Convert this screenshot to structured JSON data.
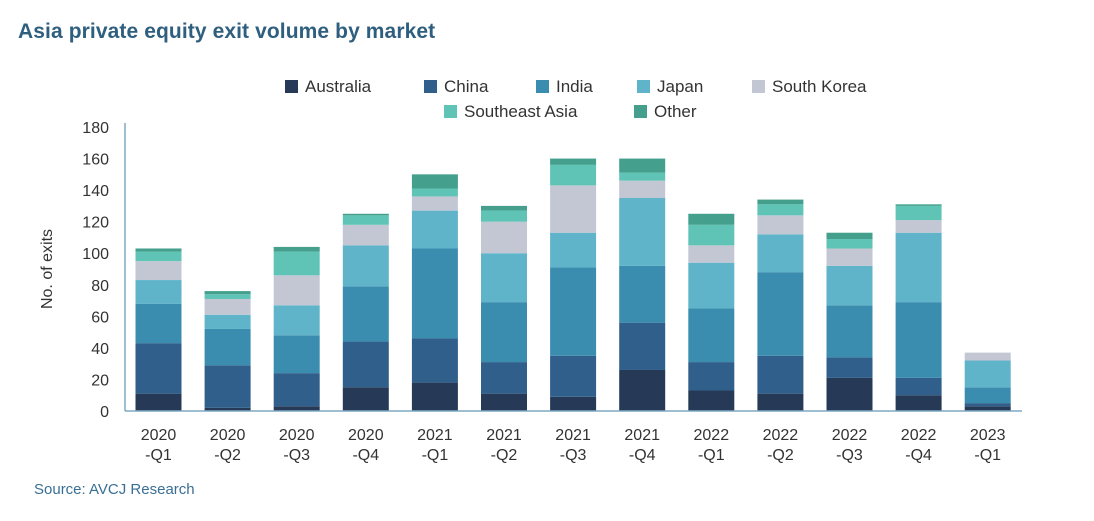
{
  "title": "Asia private equity exit volume by market",
  "source": "Source: AVCJ Research",
  "chart_data": {
    "type": "bar",
    "stacked": true,
    "title": "Asia private equity exit volume by market",
    "xlabel": "",
    "ylabel": "No. of exits",
    "ylim": [
      0,
      180
    ],
    "yticks": [
      0,
      20,
      40,
      60,
      80,
      100,
      120,
      140,
      160,
      180
    ],
    "grid": false,
    "legend_position": "top",
    "categories": [
      [
        "2020",
        "-Q1"
      ],
      [
        "2020",
        "-Q2"
      ],
      [
        "2020",
        "-Q3"
      ],
      [
        "2020",
        "-Q4"
      ],
      [
        "2021",
        "-Q1"
      ],
      [
        "2021",
        "-Q2"
      ],
      [
        "2021",
        "-Q3"
      ],
      [
        "2021",
        "-Q4"
      ],
      [
        "2022",
        "-Q1"
      ],
      [
        "2022",
        "-Q2"
      ],
      [
        "2022",
        "-Q3"
      ],
      [
        "2022",
        "-Q4"
      ],
      [
        "2023",
        "-Q1"
      ]
    ],
    "series": [
      {
        "name": "Australia",
        "color": "#263a57",
        "values": [
          11,
          2,
          3,
          15,
          18,
          11,
          9,
          26,
          13,
          11,
          21,
          10,
          3
        ]
      },
      {
        "name": "China",
        "color": "#2f5f8a",
        "values": [
          32,
          27,
          21,
          29,
          28,
          20,
          26,
          30,
          18,
          24,
          13,
          11,
          2
        ]
      },
      {
        "name": "India",
        "color": "#3b8db0",
        "values": [
          25,
          23,
          24,
          35,
          57,
          38,
          56,
          36,
          34,
          53,
          33,
          48,
          10
        ]
      },
      {
        "name": "Japan",
        "color": "#5fb4c9",
        "values": [
          15,
          9,
          19,
          26,
          24,
          31,
          22,
          43,
          29,
          24,
          25,
          44,
          17
        ]
      },
      {
        "name": "South Korea",
        "color": "#c3c7d4",
        "values": [
          12,
          10,
          19,
          13,
          9,
          20,
          30,
          11,
          11,
          12,
          11,
          8,
          5
        ]
      },
      {
        "name": "Southeast Asia",
        "color": "#5fc4b5",
        "values": [
          6,
          3,
          15,
          6,
          5,
          7,
          13,
          5,
          13,
          7,
          6,
          9,
          0
        ]
      },
      {
        "name": "Other",
        "color": "#44a08d",
        "values": [
          2,
          2,
          3,
          1,
          9,
          3,
          4,
          9,
          7,
          3,
          4,
          1,
          0
        ]
      }
    ]
  }
}
